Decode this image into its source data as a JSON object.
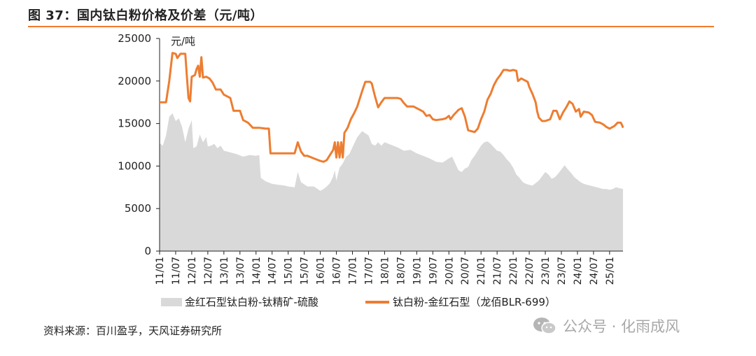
{
  "header": {
    "title": "图 37：国内钛白粉价格及价差（元/吨）"
  },
  "footer": {
    "source": "资料来源：百川盈孚，天风证券研究所"
  },
  "watermark": {
    "text": "公众号 · 化雨成风",
    "icon": "wechat-icon"
  },
  "colors": {
    "accent": "#f07b2c",
    "area": "#d9d9d9",
    "line": "#ed7d31"
  },
  "chart_data": {
    "type": "line",
    "title": "",
    "ylabel": "元/吨",
    "xlabel": "",
    "ylim": [
      0,
      25000
    ],
    "yticks": [
      0,
      5000,
      10000,
      15000,
      20000,
      25000
    ],
    "xlim": [
      2011.0,
      2025.417
    ],
    "xticks": [
      "11/01",
      "11/07",
      "12/01",
      "12/07",
      "13/01",
      "13/07",
      "14/01",
      "14/07",
      "15/01",
      "15/07",
      "16/01",
      "16/07",
      "17/01",
      "17/07",
      "18/01",
      "18/07",
      "19/01",
      "19/07",
      "20/01",
      "20/07",
      "21/01",
      "21/07",
      "22/01",
      "22/07",
      "23/01",
      "23/07",
      "24/01",
      "24/07",
      "25/01"
    ],
    "grid": false,
    "legend_position": "bottom",
    "series": [
      {
        "name": "金红石型钛白粉-钛精矿-硫酸",
        "type": "area",
        "points": [
          [
            2011.0,
            12700
          ],
          [
            2011.1,
            12400
          ],
          [
            2011.2,
            13600
          ],
          [
            2011.3,
            15800
          ],
          [
            2011.4,
            16200
          ],
          [
            2011.5,
            15300
          ],
          [
            2011.6,
            15600
          ],
          [
            2011.7,
            14600
          ],
          [
            2011.8,
            12800
          ],
          [
            2011.9,
            14400
          ],
          [
            2012.0,
            15400
          ],
          [
            2012.05,
            12100
          ],
          [
            2012.15,
            12300
          ],
          [
            2012.25,
            13700
          ],
          [
            2012.35,
            12800
          ],
          [
            2012.45,
            13400
          ],
          [
            2012.5,
            12300
          ],
          [
            2012.6,
            12400
          ],
          [
            2012.7,
            12600
          ],
          [
            2012.8,
            12100
          ],
          [
            2012.9,
            12400
          ],
          [
            2013.0,
            11800
          ],
          [
            2013.2,
            11600
          ],
          [
            2013.4,
            11400
          ],
          [
            2013.6,
            11100
          ],
          [
            2013.8,
            11300
          ],
          [
            2014.0,
            11200
          ],
          [
            2014.1,
            11300
          ],
          [
            2014.15,
            8600
          ],
          [
            2014.3,
            8200
          ],
          [
            2014.5,
            7900
          ],
          [
            2014.7,
            7800
          ],
          [
            2014.9,
            7700
          ],
          [
            2015.0,
            7600
          ],
          [
            2015.2,
            7500
          ],
          [
            2015.3,
            9300
          ],
          [
            2015.4,
            8100
          ],
          [
            2015.6,
            7600
          ],
          [
            2015.8,
            7600
          ],
          [
            2016.0,
            7100
          ],
          [
            2016.1,
            7300
          ],
          [
            2016.2,
            7600
          ],
          [
            2016.3,
            8000
          ],
          [
            2016.4,
            8800
          ],
          [
            2016.45,
            9500
          ],
          [
            2016.5,
            8300
          ],
          [
            2016.6,
            9800
          ],
          [
            2016.7,
            10300
          ],
          [
            2016.8,
            11100
          ],
          [
            2016.9,
            11400
          ],
          [
            2017.0,
            12200
          ],
          [
            2017.15,
            13400
          ],
          [
            2017.3,
            14100
          ],
          [
            2017.5,
            13600
          ],
          [
            2017.6,
            12600
          ],
          [
            2017.7,
            12400
          ],
          [
            2017.8,
            12800
          ],
          [
            2017.9,
            12400
          ],
          [
            2018.0,
            12800
          ],
          [
            2018.2,
            12500
          ],
          [
            2018.4,
            12200
          ],
          [
            2018.6,
            11800
          ],
          [
            2018.8,
            11900
          ],
          [
            2019.0,
            11500
          ],
          [
            2019.2,
            11200
          ],
          [
            2019.4,
            10900
          ],
          [
            2019.6,
            10500
          ],
          [
            2019.8,
            10400
          ],
          [
            2020.0,
            10900
          ],
          [
            2020.1,
            11100
          ],
          [
            2020.2,
            10300
          ],
          [
            2020.3,
            9500
          ],
          [
            2020.4,
            9300
          ],
          [
            2020.5,
            9700
          ],
          [
            2020.6,
            9900
          ],
          [
            2020.7,
            10700
          ],
          [
            2020.8,
            11200
          ],
          [
            2020.9,
            11800
          ],
          [
            2021.0,
            12400
          ],
          [
            2021.1,
            12800
          ],
          [
            2021.2,
            12900
          ],
          [
            2021.3,
            12600
          ],
          [
            2021.4,
            12200
          ],
          [
            2021.5,
            11800
          ],
          [
            2021.6,
            11700
          ],
          [
            2021.7,
            11300
          ],
          [
            2021.8,
            10800
          ],
          [
            2021.9,
            10400
          ],
          [
            2022.0,
            9800
          ],
          [
            2022.1,
            9000
          ],
          [
            2022.2,
            8600
          ],
          [
            2022.3,
            8100
          ],
          [
            2022.4,
            7900
          ],
          [
            2022.5,
            7800
          ],
          [
            2022.6,
            7700
          ],
          [
            2022.7,
            8000
          ],
          [
            2022.8,
            8300
          ],
          [
            2022.9,
            8800
          ],
          [
            2023.0,
            9300
          ],
          [
            2023.1,
            9000
          ],
          [
            2023.2,
            8500
          ],
          [
            2023.3,
            8700
          ],
          [
            2023.4,
            9100
          ],
          [
            2023.5,
            9600
          ],
          [
            2023.6,
            10100
          ],
          [
            2023.7,
            9600
          ],
          [
            2023.8,
            9200
          ],
          [
            2023.9,
            8700
          ],
          [
            2024.0,
            8400
          ],
          [
            2024.1,
            8100
          ],
          [
            2024.2,
            7900
          ],
          [
            2024.3,
            7800
          ],
          [
            2024.4,
            7700
          ],
          [
            2024.5,
            7600
          ],
          [
            2024.6,
            7500
          ],
          [
            2024.7,
            7400
          ],
          [
            2024.8,
            7300
          ],
          [
            2024.9,
            7300
          ],
          [
            2025.0,
            7200
          ],
          [
            2025.1,
            7300
          ],
          [
            2025.2,
            7500
          ],
          [
            2025.3,
            7400
          ],
          [
            2025.417,
            7300
          ]
        ]
      },
      {
        "name": "钛白粉-金红石型（龙佰BLR-699）",
        "type": "line",
        "points": [
          [
            2011.0,
            17500
          ],
          [
            2011.1,
            17500
          ],
          [
            2011.2,
            17500
          ],
          [
            2011.3,
            20000
          ],
          [
            2011.4,
            23300
          ],
          [
            2011.5,
            23200
          ],
          [
            2011.55,
            22700
          ],
          [
            2011.65,
            23200
          ],
          [
            2011.8,
            23200
          ],
          [
            2011.85,
            20500
          ],
          [
            2011.9,
            18000
          ],
          [
            2011.95,
            17600
          ],
          [
            2012.0,
            20500
          ],
          [
            2012.1,
            20700
          ],
          [
            2012.15,
            21400
          ],
          [
            2012.2,
            21800
          ],
          [
            2012.25,
            20500
          ],
          [
            2012.3,
            22800
          ],
          [
            2012.35,
            20400
          ],
          [
            2012.45,
            20500
          ],
          [
            2012.55,
            20300
          ],
          [
            2012.65,
            19800
          ],
          [
            2012.75,
            19000
          ],
          [
            2012.9,
            19000
          ],
          [
            2013.0,
            18400
          ],
          [
            2013.2,
            18000
          ],
          [
            2013.3,
            16500
          ],
          [
            2013.5,
            16500
          ],
          [
            2013.6,
            15400
          ],
          [
            2013.75,
            15100
          ],
          [
            2013.9,
            14500
          ],
          [
            2014.1,
            14500
          ],
          [
            2014.3,
            14400
          ],
          [
            2014.4,
            14400
          ],
          [
            2014.45,
            11500
          ],
          [
            2014.6,
            11500
          ],
          [
            2014.8,
            11500
          ],
          [
            2015.0,
            11500
          ],
          [
            2015.2,
            11500
          ],
          [
            2015.3,
            12800
          ],
          [
            2015.4,
            11700
          ],
          [
            2015.5,
            11200
          ],
          [
            2015.6,
            11200
          ],
          [
            2015.8,
            10900
          ],
          [
            2016.0,
            10600
          ],
          [
            2016.1,
            10500
          ],
          [
            2016.2,
            10700
          ],
          [
            2016.3,
            11300
          ],
          [
            2016.4,
            11900
          ],
          [
            2016.45,
            12800
          ],
          [
            2016.5,
            11000
          ],
          [
            2016.55,
            12800
          ],
          [
            2016.6,
            11000
          ],
          [
            2016.65,
            12800
          ],
          [
            2016.7,
            11000
          ],
          [
            2016.75,
            13900
          ],
          [
            2016.85,
            14500
          ],
          [
            2016.95,
            15500
          ],
          [
            2017.05,
            16200
          ],
          [
            2017.15,
            17000
          ],
          [
            2017.3,
            18800
          ],
          [
            2017.4,
            19900
          ],
          [
            2017.55,
            19900
          ],
          [
            2017.6,
            19700
          ],
          [
            2017.7,
            18200
          ],
          [
            2017.8,
            16900
          ],
          [
            2017.9,
            17500
          ],
          [
            2018.0,
            18000
          ],
          [
            2018.2,
            18000
          ],
          [
            2018.4,
            18000
          ],
          [
            2018.5,
            17900
          ],
          [
            2018.6,
            17400
          ],
          [
            2018.7,
            17000
          ],
          [
            2018.9,
            17000
          ],
          [
            2019.0,
            16800
          ],
          [
            2019.1,
            16600
          ],
          [
            2019.2,
            16400
          ],
          [
            2019.3,
            15900
          ],
          [
            2019.4,
            16000
          ],
          [
            2019.5,
            15500
          ],
          [
            2019.6,
            15400
          ],
          [
            2019.8,
            15500
          ],
          [
            2019.9,
            15600
          ],
          [
            2020.0,
            15900
          ],
          [
            2020.05,
            15500
          ],
          [
            2020.15,
            16000
          ],
          [
            2020.3,
            16600
          ],
          [
            2020.4,
            16800
          ],
          [
            2020.5,
            15800
          ],
          [
            2020.6,
            14200
          ],
          [
            2020.8,
            14000
          ],
          [
            2020.9,
            14400
          ],
          [
            2021.0,
            15500
          ],
          [
            2021.1,
            16400
          ],
          [
            2021.2,
            17800
          ],
          [
            2021.3,
            18500
          ],
          [
            2021.4,
            19500
          ],
          [
            2021.5,
            20200
          ],
          [
            2021.6,
            20700
          ],
          [
            2021.7,
            21300
          ],
          [
            2021.8,
            21300
          ],
          [
            2021.9,
            21200
          ],
          [
            2022.0,
            21300
          ],
          [
            2022.1,
            21200
          ],
          [
            2022.15,
            20000
          ],
          [
            2022.25,
            20300
          ],
          [
            2022.35,
            20100
          ],
          [
            2022.45,
            19900
          ],
          [
            2022.5,
            19300
          ],
          [
            2022.6,
            18500
          ],
          [
            2022.7,
            17500
          ],
          [
            2022.75,
            16400
          ],
          [
            2022.8,
            15700
          ],
          [
            2022.9,
            15300
          ],
          [
            2023.0,
            15300
          ],
          [
            2023.15,
            15500
          ],
          [
            2023.25,
            16500
          ],
          [
            2023.35,
            16500
          ],
          [
            2023.45,
            15500
          ],
          [
            2023.55,
            16300
          ],
          [
            2023.65,
            16900
          ],
          [
            2023.75,
            17600
          ],
          [
            2023.85,
            17300
          ],
          [
            2023.95,
            16400
          ],
          [
            2024.05,
            16700
          ],
          [
            2024.1,
            15800
          ],
          [
            2024.2,
            16400
          ],
          [
            2024.35,
            16300
          ],
          [
            2024.45,
            16000
          ],
          [
            2024.55,
            15200
          ],
          [
            2024.7,
            15100
          ],
          [
            2024.8,
            14900
          ],
          [
            2024.9,
            14600
          ],
          [
            2025.0,
            14400
          ],
          [
            2025.05,
            14500
          ],
          [
            2025.15,
            14700
          ],
          [
            2025.25,
            15100
          ],
          [
            2025.35,
            15100
          ],
          [
            2025.4,
            14700
          ],
          [
            2025.417,
            14500
          ]
        ]
      }
    ]
  }
}
